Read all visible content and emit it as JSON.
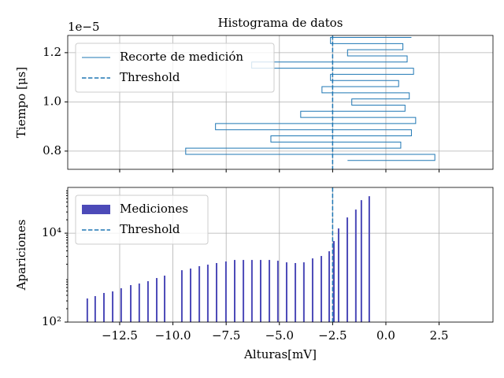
{
  "chart_data": [
    {
      "type": "line",
      "title": "Histograma de datos",
      "ylabel": "Tiempo [μs]",
      "y_offset_label": "1e−5",
      "sharex": true,
      "grid": true,
      "legend": "upper left",
      "ylim": [
        0.726,
        1.27
      ],
      "yticks": [
        0.8,
        {
          "value": 1.0,
          "label": "1.0"
        },
        1.2
      ],
      "series": [
        {
          "name": "Recorte de medición",
          "color": "#1f77b4",
          "x": [
            1.2,
            -2.6,
            -2.6,
            0.8,
            0.8,
            -1.8,
            -1.8,
            1.0,
            1.0,
            -6.3,
            -6.3,
            1.3,
            1.3,
            -2.6,
            -2.6,
            0.6,
            0.6,
            -3.0,
            -3.0,
            1.1,
            1.1,
            -1.6,
            -1.6,
            0.9,
            0.9,
            -4.0,
            -4.0,
            1.4,
            1.4,
            -8.0,
            -8.0,
            1.2,
            1.2,
            -5.4,
            -5.4,
            0.7,
            0.7,
            -9.4,
            -9.4,
            2.3,
            2.3,
            -1.8
          ],
          "y": [
            1.262,
            1.262,
            1.237,
            1.237,
            1.212,
            1.212,
            1.187,
            1.187,
            1.162,
            1.162,
            1.137,
            1.137,
            1.112,
            1.112,
            1.087,
            1.087,
            1.062,
            1.062,
            1.037,
            1.037,
            1.012,
            1.012,
            0.987,
            0.987,
            0.962,
            0.962,
            0.937,
            0.937,
            0.912,
            0.912,
            0.887,
            0.887,
            0.862,
            0.862,
            0.837,
            0.837,
            0.812,
            0.812,
            0.787,
            0.787,
            0.762,
            0.762
          ]
        }
      ],
      "vlines": [
        {
          "name": "Threshold",
          "x": -2.5,
          "color": "#1f77b4",
          "style": "dashed"
        }
      ]
    },
    {
      "type": "bar",
      "xlabel": "Alturas[mV]",
      "ylabel": "Apariciones",
      "yscale": "log",
      "grid": true,
      "legend": "upper left",
      "xlim": [
        -14.94,
        5.03
      ],
      "xticks": [
        {
          "value": -12.5,
          "label": "−12.5"
        },
        {
          "value": -10,
          "label": "−10.0"
        },
        {
          "value": -7.5,
          "label": "−7.5"
        },
        {
          "value": -5,
          "label": "−5.0"
        },
        {
          "value": -2.5,
          "label": "−2.5"
        },
        {
          "value": 0,
          "label": "0.0"
        },
        2.5
      ],
      "ylim": [
        100,
        107000
      ],
      "yticks": [
        {
          "value": 100,
          "label": "10²"
        },
        {
          "value": 10000,
          "label": "10⁴"
        }
      ],
      "x": [
        -14.02,
        -13.65,
        -13.24,
        -12.83,
        -12.43,
        -11.98,
        -11.58,
        -11.17,
        -10.76,
        -10.39,
        -9.58,
        -9.17,
        -8.76,
        -8.36,
        -7.95,
        -7.51,
        -7.1,
        -6.69,
        -6.29,
        -5.88,
        -5.47,
        -5.07,
        -4.66,
        -4.25,
        -3.85,
        -3.44,
        -3.03,
        -2.66,
        -2.44,
        -2.22,
        -1.81,
        -1.41,
        -1.15,
        -0.78,
        -0.37
      ],
      "series": [
        {
          "name": "Mediciones",
          "color": "#4c4ab8",
          "values": [
            340,
            384,
            452,
            490,
            577,
            679,
            737,
            832,
            980,
            1110,
            1470,
            1600,
            1810,
            1960,
            2130,
            2310,
            2500,
            2500,
            2500,
            2500,
            2500,
            2400,
            2210,
            2130,
            2210,
            2710,
            3070,
            3920,
            6650,
            12800,
            22600,
            34000,
            55400,
            67900,
            0
          ]
        }
      ],
      "vlines": [
        {
          "name": "Threshold",
          "x": -2.5,
          "color": "#1f77b4",
          "style": "dashed"
        }
      ]
    }
  ]
}
